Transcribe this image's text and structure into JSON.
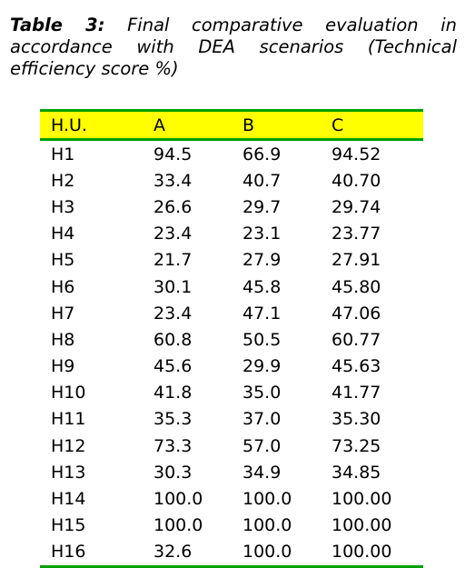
{
  "caption": {
    "label": "Table 3:",
    "text": " Final comparative evaluation in accordance with DEA scenarios (Technical efficiency score %)"
  },
  "table": {
    "headers": [
      "H.U.",
      "A",
      "B",
      "C"
    ],
    "rows": [
      [
        "H1",
        "94.5",
        "66.9",
        "94.52"
      ],
      [
        "H2",
        "33.4",
        "40.7",
        "40.70"
      ],
      [
        "H3",
        "26.6",
        "29.7",
        "29.74"
      ],
      [
        "H4",
        "23.4",
        "23.1",
        "23.77"
      ],
      [
        "H5",
        "21.7",
        "27.9",
        "27.91"
      ],
      [
        "H6",
        "30.1",
        "45.8",
        "45.80"
      ],
      [
        "H7",
        "23.4",
        "47.1",
        "47.06"
      ],
      [
        "H8",
        "60.8",
        "50.5",
        "60.77"
      ],
      [
        "H9",
        "45.6",
        "29.9",
        "45.63"
      ],
      [
        "H10",
        "41.8",
        "35.0",
        "41.77"
      ],
      [
        "H11",
        "35.3",
        "37.0",
        "35.30"
      ],
      [
        "H12",
        "73.3",
        "57.0",
        "73.25"
      ],
      [
        "H13",
        "30.3",
        "34.9",
        "34.85"
      ],
      [
        "H14",
        "100.0",
        "100.0",
        "100.00"
      ],
      [
        "H15",
        "100.0",
        "100.0",
        "100.00"
      ],
      [
        "H16",
        "32.6",
        "100.0",
        "100.00"
      ]
    ]
  },
  "colors": {
    "header_background": "#ffff00",
    "rule_color": "#00a000"
  }
}
